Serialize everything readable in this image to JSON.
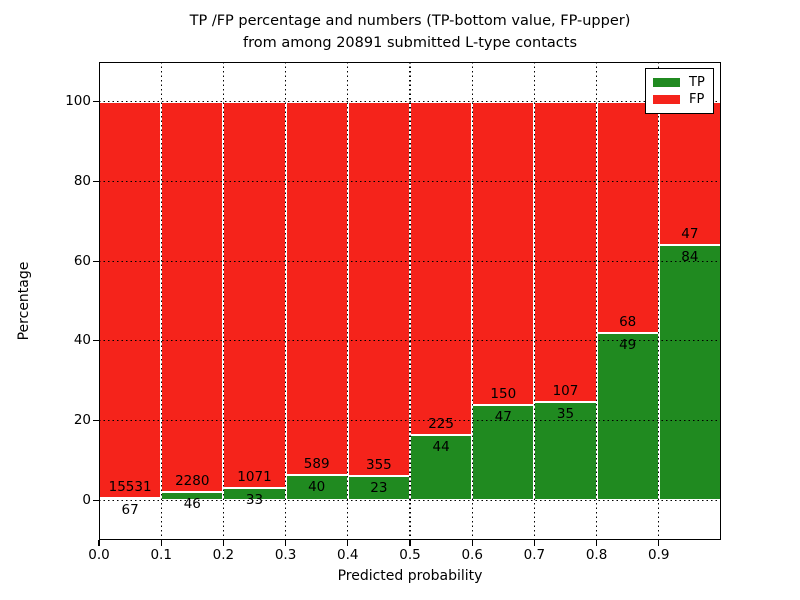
{
  "title": {
    "line1": "TP /FP percentage and numbers (TP-bottom value, FP-upper)",
    "line2": "from among 20891 submitted L-type contacts"
  },
  "chart_data": {
    "type": "bar",
    "subtype": "stacked-percentage-histogram",
    "title": "TP /FP percentage and numbers (TP-bottom value, FP-upper) from among 20891 submitted L-type contacts",
    "xlabel": "Predicted probability",
    "ylabel": "Percentage",
    "xlim": [
      0.0,
      1.0
    ],
    "ylim": [
      -10,
      110
    ],
    "xticks": [
      "0.0",
      "0.1",
      "0.2",
      "0.3",
      "0.4",
      "0.5",
      "0.6",
      "0.7",
      "0.8",
      "0.9"
    ],
    "yticks": [
      0,
      20,
      40,
      60,
      80,
      100
    ],
    "bin_width": 0.1,
    "bins": [
      "0.0-0.1",
      "0.1-0.2",
      "0.2-0.3",
      "0.3-0.4",
      "0.4-0.5",
      "0.5-0.6",
      "0.6-0.7",
      "0.7-0.8",
      "0.8-0.9",
      "0.9-1.0"
    ],
    "series": [
      {
        "name": "TP",
        "color": "#208a20",
        "counts": [
          67,
          46,
          33,
          40,
          23,
          44,
          47,
          35,
          49,
          84
        ],
        "percent": [
          0.43,
          1.98,
          2.99,
          6.36,
          6.08,
          16.36,
          23.86,
          24.65,
          41.88,
          64.12
        ]
      },
      {
        "name": "FP",
        "color": "#f5231b",
        "counts": [
          15531,
          2280,
          1071,
          589,
          355,
          225,
          150,
          107,
          68,
          47
        ],
        "percent": [
          99.57,
          98.02,
          97.01,
          93.64,
          93.92,
          83.64,
          76.14,
          75.35,
          58.12,
          35.88
        ]
      }
    ],
    "total_contacts": 20891,
    "legend": {
      "position": "upper right",
      "entries": [
        "TP",
        "FP"
      ]
    },
    "grid": {
      "style": "dotted",
      "color": "#000000"
    },
    "bar_edge_color": "#ffffff",
    "label_note": "TP count below segment boundary, FP count above"
  }
}
